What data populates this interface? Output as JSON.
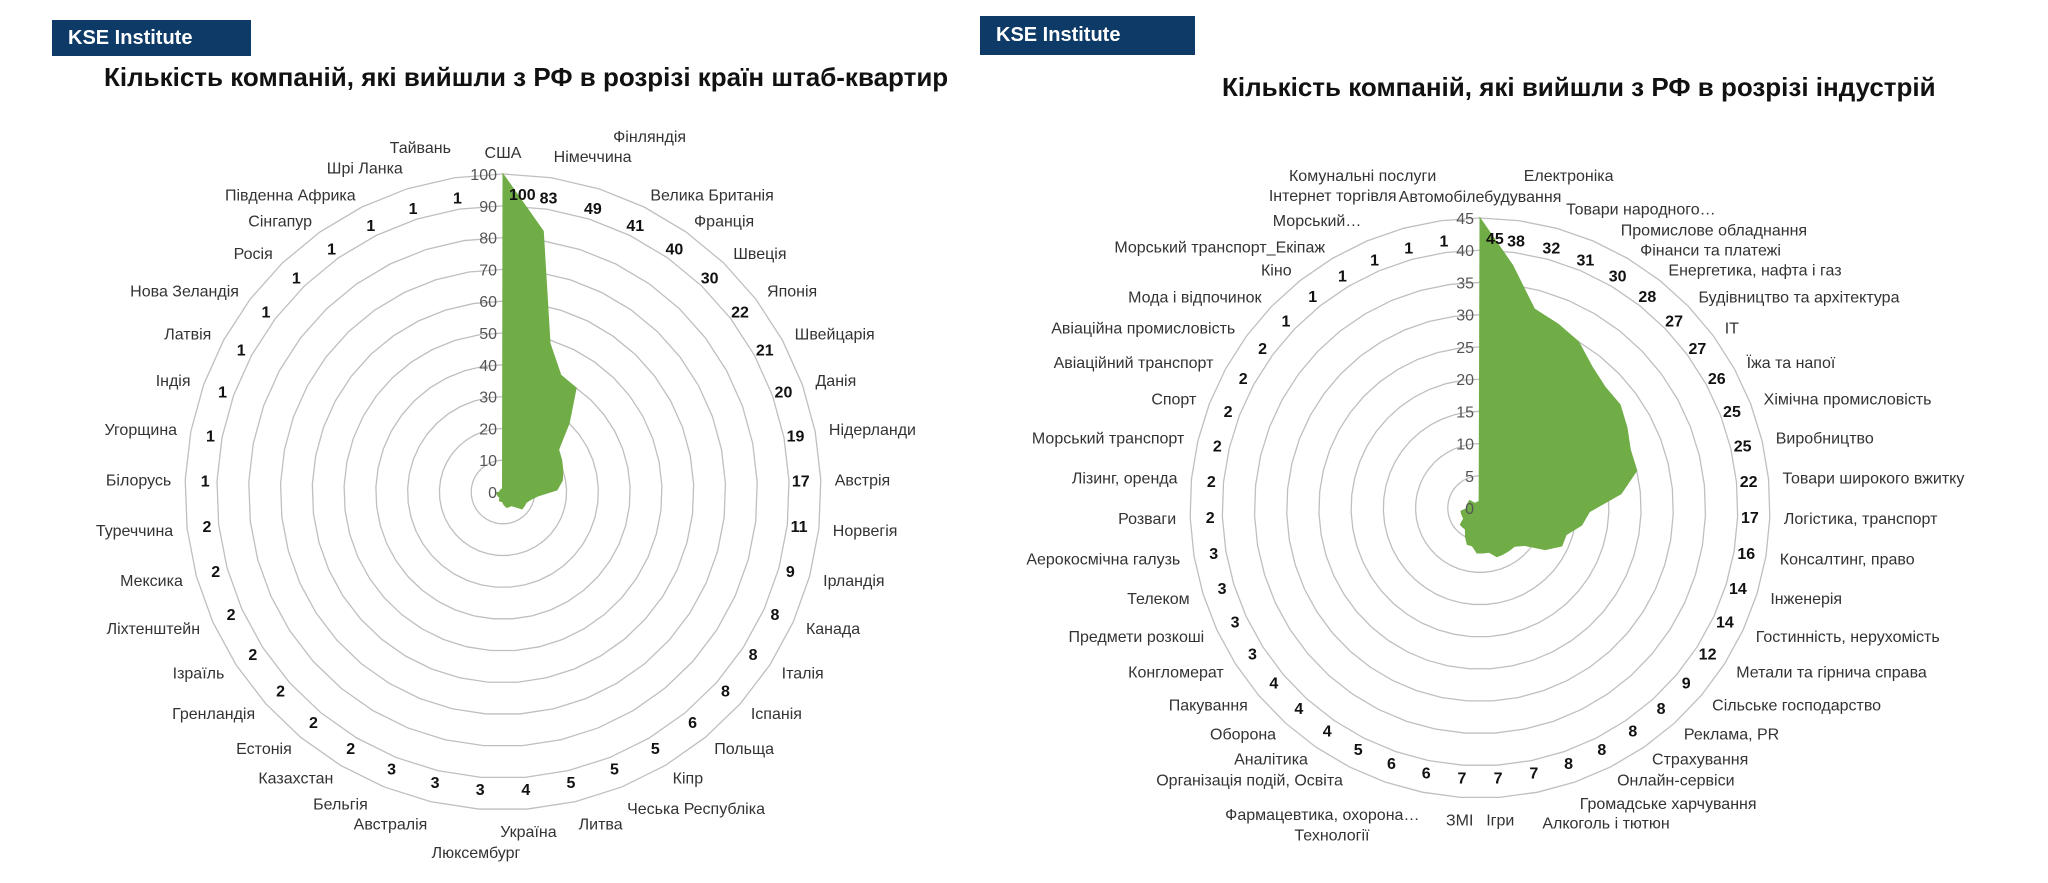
{
  "left_panel": {
    "badge": "KSE Institute",
    "title": "Кількість компаній, які вийшли з РФ в розрізі країн штаб-квартир"
  },
  "right_panel": {
    "badge": "KSE Institute",
    "title": "Кількість компаній, які вийшли з РФ в розрізі індустрій"
  },
  "colors": {
    "fill": "#70AD47",
    "grid": "#bfbfbf",
    "badge": "#0d3a66"
  },
  "chart_data": [
    {
      "type": "radar",
      "title": "Кількість компаній, які вийшли з РФ в розрізі країн штаб-квартир",
      "rlim": [
        0,
        100
      ],
      "ticks": [
        0,
        10,
        20,
        30,
        40,
        50,
        60,
        70,
        80,
        90,
        100
      ],
      "categories": [
        "США",
        "Німеччина",
        "Фінляндія",
        "Велика Британія",
        "Франція",
        "Швеція",
        "Японія",
        "Швейцарія",
        "Данія",
        "Нідерланди",
        "Австрія",
        "Норвегія",
        "Ірландія",
        "Канада",
        "Італія",
        "Іспанія",
        "Польща",
        "Кіпр",
        "Чеська Республіка",
        "Литва",
        "Україна",
        "Люксембург",
        "Австралія",
        "Бельгія",
        "Казахстан",
        "Естонія",
        "Гренландія",
        "Ізраїль",
        "Ліхтенштейн",
        "Мексика",
        "Туреччина",
        "Білорусь",
        "Угорщина",
        "Індія",
        "Латвія",
        "Нова Зеландія",
        "Росія",
        "Сінгапур",
        "Південна Африка",
        "Шрі Ланка",
        "Тайвань"
      ],
      "values": [
        100,
        83,
        49,
        41,
        40,
        30,
        22,
        21,
        20,
        19,
        17,
        11,
        9,
        8,
        8,
        8,
        6,
        5,
        5,
        5,
        4,
        3,
        3,
        3,
        2,
        2,
        2,
        2,
        2,
        2,
        2,
        1,
        1,
        1,
        1,
        1,
        1,
        1,
        1,
        1,
        1
      ]
    },
    {
      "type": "radar",
      "title": "Кількість компаній, які вийшли з РФ в розрізі індустрій",
      "rlim": [
        0,
        45
      ],
      "ticks": [
        0,
        5,
        10,
        15,
        20,
        25,
        30,
        35,
        40,
        45
      ],
      "categories": [
        "Автомобілебудування",
        "Електроніка",
        "Товари народного…",
        "Промислове обладнання",
        "Фінанси та платежі",
        "Енергетика, нафта  і газ",
        "Будівництво та архітектура",
        "IT",
        "Їжа та напої",
        "Хімічна промисловість",
        "Виробництво",
        "Товари широкого вжитку",
        "Логістика, транспорт",
        "Консалтинг, право",
        "Інженерія",
        "Гостинність, нерухомість",
        "Метали та гірнича справа",
        "Сільське господарство",
        "Реклама, PR",
        "Страхування",
        "Онлайн-сервіси",
        "Громадське харчування",
        "Алкоголь і тютюн",
        "Ігри",
        "ЗМІ",
        "Фармацевтика, охорона…",
        "Технології",
        "Організація подій, Освіта",
        "Аналітика",
        "Оборона",
        "Пакування",
        "Конгломерат",
        "Предмети розкоші",
        "Телеком",
        "Аерокосмічна галузь",
        "Розваги",
        "Лізинг, оренда",
        "Морський транспорт",
        "Спорт",
        "Авіаційний транспорт",
        "Авіаційна промисловість",
        "Мода і відпочинок",
        "Кіно",
        "Морський транспорт_Екіпаж",
        "Морський…",
        "Інтернет  торгівля",
        "Комунальні послуги"
      ],
      "values": [
        45,
        38,
        32,
        31,
        30,
        28,
        27,
        27,
        26,
        25,
        25,
        22,
        17,
        16,
        14,
        14,
        12,
        9,
        8,
        8,
        8,
        8,
        7,
        7,
        7,
        6,
        6,
        5,
        4,
        4,
        4,
        3,
        3,
        3,
        3,
        2,
        2,
        2,
        2,
        2,
        2,
        1,
        1,
        1,
        1,
        1,
        1
      ]
    }
  ]
}
